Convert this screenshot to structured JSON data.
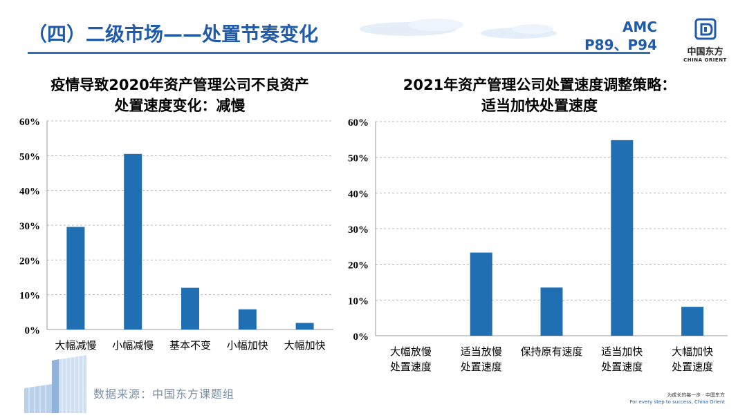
{
  "header": {
    "title": "（四）二级市场——处置节奏变化",
    "ref_line1": "AMC",
    "ref_line2": "P89、P94",
    "logo_cn": "中国东方",
    "logo_en": "CHINA ORIENT"
  },
  "chart_data": [
    {
      "type": "bar",
      "title_line1": "疫情导致2020年资产管理公司不良资产",
      "title_line2": "处置速度变化：减慢",
      "categories": [
        "大幅减慢",
        "小幅减慢",
        "基本不变",
        "小幅加快",
        "大幅加快"
      ],
      "values": [
        29.5,
        50.5,
        12,
        5.8,
        1.9
      ],
      "yticks": [
        "0%",
        "10%",
        "20%",
        "30%",
        "40%",
        "50%",
        "60%"
      ],
      "ylim": [
        0,
        60
      ],
      "grid": true,
      "color": "#1f6fb2"
    },
    {
      "type": "bar",
      "title_line1": "2021年资产管理公司处置速度调整策略：",
      "title_line2": "适当加快处置速度",
      "categories": [
        [
          "大幅放慢",
          "处置速度"
        ],
        [
          "适当放慢",
          "处置速度"
        ],
        [
          "保持原有速度"
        ],
        [
          "适当加快",
          "处置速度"
        ],
        [
          "大幅加快",
          "处置速度"
        ]
      ],
      "values": [
        0,
        23.3,
        13.5,
        54.8,
        8.1
      ],
      "yticks": [
        "0%",
        "10%",
        "20%",
        "30%",
        "40%",
        "50%",
        "60%"
      ],
      "ylim": [
        0,
        60
      ],
      "grid": true,
      "color": "#1f6fb2"
    }
  ],
  "footer": {
    "source": "数据来源：中国东方课题组",
    "slogan_cn": "为成长的每一步 · 中国东方",
    "slogan_en": "For every step to success, China Orient"
  }
}
